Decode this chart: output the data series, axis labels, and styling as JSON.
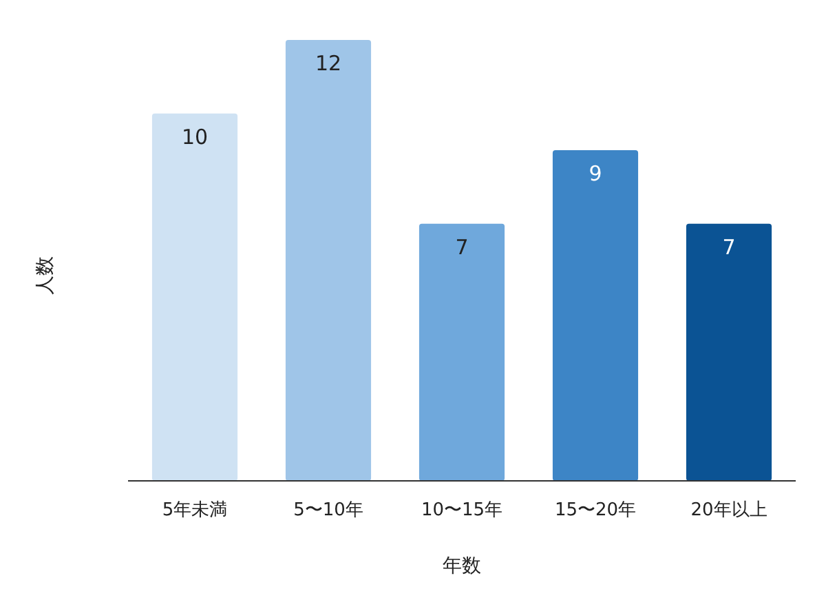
{
  "chart_data": {
    "type": "bar",
    "xlabel": "年数",
    "ylabel": "人数",
    "categories": [
      "5年未満",
      "5〜10年",
      "10〜15年",
      "15〜20年",
      "20年以上"
    ],
    "values": [
      10,
      12,
      7,
      9,
      7
    ],
    "colors": [
      "#cfe2f3",
      "#9fc5e8",
      "#6fa8dc",
      "#3d85c6",
      "#0b5394"
    ],
    "data_labels": true
  }
}
